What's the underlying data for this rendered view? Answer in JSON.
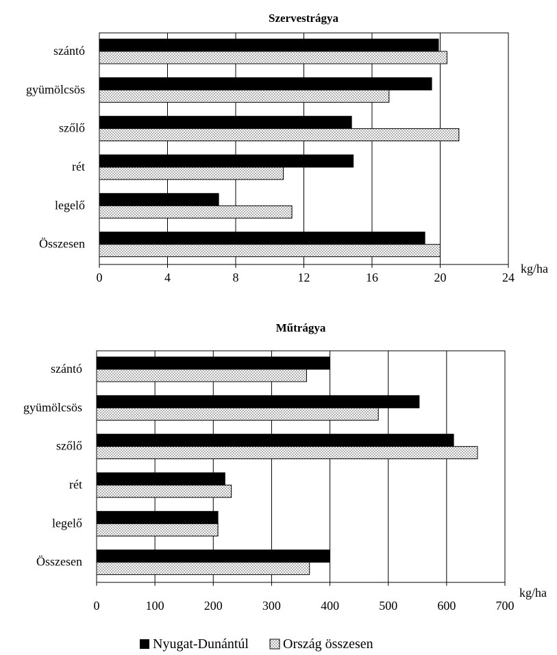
{
  "chart_data": [
    {
      "type": "bar",
      "orientation": "horizontal",
      "title": "Szervestrágya",
      "unit": "kg/ha",
      "categories": [
        "szántó",
        "gyümölcsös",
        "szőlő",
        "rét",
        "legelő",
        "Összesen"
      ],
      "series": [
        {
          "name": "Nyugat-Dunántúl",
          "values": [
            19.9,
            19.5,
            14.8,
            14.9,
            7.0,
            19.1
          ]
        },
        {
          "name": "Ország összesen",
          "values": [
            20.4,
            17.0,
            21.1,
            10.8,
            11.3,
            20.0
          ]
        }
      ],
      "xlim": [
        0,
        24
      ],
      "xticks": [
        "0",
        "4",
        "8",
        "12",
        "16",
        "20",
        "24"
      ],
      "grid": "vertical"
    },
    {
      "type": "bar",
      "orientation": "horizontal",
      "title": "Műtrágya",
      "unit": "kg/ha",
      "categories": [
        "szántó",
        "gyümölcsös",
        "szőlő",
        "rét",
        "legelő",
        "Összesen"
      ],
      "series": [
        {
          "name": "Nyugat-Dunántúl",
          "values": [
            400,
            553,
            612,
            220,
            208,
            400
          ]
        },
        {
          "name": "Ország összesen",
          "values": [
            360,
            483,
            653,
            231,
            208,
            365
          ]
        }
      ],
      "xlim": [
        0,
        700
      ],
      "xticks": [
        "0",
        "100",
        "200",
        "300",
        "400",
        "500",
        "600",
        "700"
      ],
      "grid": "vertical"
    }
  ],
  "legend": {
    "placement": "bottom-center",
    "items": [
      {
        "label": "Nyugat-Dunántúl",
        "fill": "solid-black"
      },
      {
        "label": "Ország összesen",
        "fill": "dotted"
      }
    ]
  },
  "colors": {
    "series1": "#000000",
    "series2_bg": "#ffffff",
    "series2_dots": "#333333",
    "axis": "#000000"
  }
}
